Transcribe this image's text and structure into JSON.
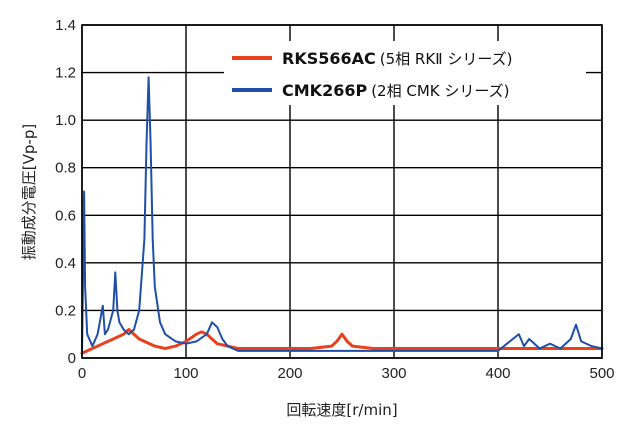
{
  "chart_data": {
    "type": "line",
    "xlabel": "回転速度[r/min]",
    "ylabel": "振動成分電圧[Vp-p]",
    "xlim": [
      0,
      500
    ],
    "ylim": [
      0,
      1.4
    ],
    "x_ticks": [
      "0",
      "100",
      "200",
      "300",
      "400",
      "500"
    ],
    "y_ticks": [
      "0",
      "0.2",
      "0.4",
      "0.6",
      "0.8",
      "1.0",
      "1.2",
      "1.4"
    ],
    "grid": true,
    "legend_position": "top-right",
    "series": [
      {
        "name": "RKS566AC",
        "description": "(5相 RKⅡ シリーズ)",
        "color": "#e8411b",
        "points": [
          [
            0,
            0.02
          ],
          [
            5,
            0.03
          ],
          [
            10,
            0.04
          ],
          [
            15,
            0.05
          ],
          [
            20,
            0.06
          ],
          [
            25,
            0.07
          ],
          [
            30,
            0.08
          ],
          [
            35,
            0.09
          ],
          [
            40,
            0.1
          ],
          [
            45,
            0.12
          ],
          [
            50,
            0.1
          ],
          [
            55,
            0.08
          ],
          [
            60,
            0.07
          ],
          [
            70,
            0.05
          ],
          [
            80,
            0.04
          ],
          [
            90,
            0.05
          ],
          [
            100,
            0.07
          ],
          [
            110,
            0.1
          ],
          [
            115,
            0.11
          ],
          [
            120,
            0.1
          ],
          [
            125,
            0.08
          ],
          [
            130,
            0.06
          ],
          [
            140,
            0.05
          ],
          [
            150,
            0.04
          ],
          [
            170,
            0.04
          ],
          [
            200,
            0.04
          ],
          [
            220,
            0.04
          ],
          [
            240,
            0.05
          ],
          [
            245,
            0.07
          ],
          [
            250,
            0.1
          ],
          [
            255,
            0.07
          ],
          [
            260,
            0.05
          ],
          [
            280,
            0.04
          ],
          [
            300,
            0.04
          ],
          [
            350,
            0.04
          ],
          [
            400,
            0.04
          ],
          [
            450,
            0.04
          ],
          [
            500,
            0.04
          ]
        ]
      },
      {
        "name": "CMK266P",
        "description": "(2相 CMK シリーズ)",
        "color": "#1f4fa8",
        "points": [
          [
            0,
            0.02
          ],
          [
            2,
            0.7
          ],
          [
            3,
            0.3
          ],
          [
            5,
            0.1
          ],
          [
            10,
            0.05
          ],
          [
            15,
            0.1
          ],
          [
            20,
            0.22
          ],
          [
            22,
            0.1
          ],
          [
            25,
            0.12
          ],
          [
            30,
            0.2
          ],
          [
            32,
            0.36
          ],
          [
            34,
            0.2
          ],
          [
            36,
            0.15
          ],
          [
            40,
            0.12
          ],
          [
            45,
            0.1
          ],
          [
            50,
            0.12
          ],
          [
            55,
            0.2
          ],
          [
            60,
            0.5
          ],
          [
            62,
            0.9
          ],
          [
            64,
            1.18
          ],
          [
            66,
            0.9
          ],
          [
            68,
            0.5
          ],
          [
            70,
            0.3
          ],
          [
            75,
            0.15
          ],
          [
            80,
            0.1
          ],
          [
            90,
            0.07
          ],
          [
            100,
            0.06
          ],
          [
            110,
            0.07
          ],
          [
            120,
            0.1
          ],
          [
            125,
            0.15
          ],
          [
            130,
            0.13
          ],
          [
            135,
            0.08
          ],
          [
            140,
            0.05
          ],
          [
            150,
            0.03
          ],
          [
            170,
            0.03
          ],
          [
            200,
            0.03
          ],
          [
            250,
            0.03
          ],
          [
            300,
            0.03
          ],
          [
            350,
            0.03
          ],
          [
            400,
            0.03
          ],
          [
            420,
            0.1
          ],
          [
            425,
            0.05
          ],
          [
            430,
            0.08
          ],
          [
            440,
            0.04
          ],
          [
            450,
            0.06
          ],
          [
            460,
            0.04
          ],
          [
            470,
            0.08
          ],
          [
            475,
            0.14
          ],
          [
            480,
            0.07
          ],
          [
            490,
            0.05
          ],
          [
            500,
            0.04
          ]
        ]
      }
    ]
  }
}
